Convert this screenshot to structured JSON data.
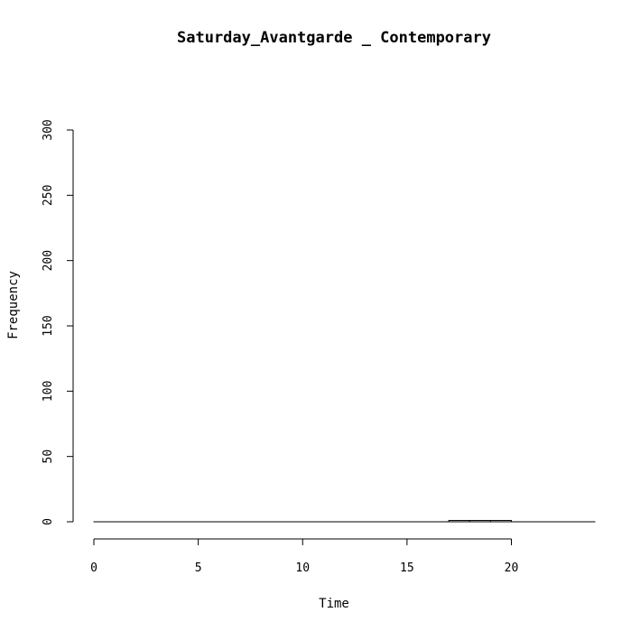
{
  "chart_data": {
    "type": "bar",
    "title": "Saturday_Avantgarde _ Contemporary",
    "xlabel": "Time",
    "ylabel": "Frequency",
    "xlim": [
      0,
      24
    ],
    "ylim": [
      0,
      300
    ],
    "x_ticks": [
      "0",
      "5",
      "10",
      "15",
      "20"
    ],
    "y_ticks": [
      "0",
      "50",
      "100",
      "150",
      "200",
      "250",
      "300"
    ],
    "bins": [
      {
        "start": 0,
        "end": 1,
        "value": 0
      },
      {
        "start": 1,
        "end": 2,
        "value": 0
      },
      {
        "start": 2,
        "end": 3,
        "value": 0
      },
      {
        "start": 3,
        "end": 4,
        "value": 0
      },
      {
        "start": 4,
        "end": 5,
        "value": 0
      },
      {
        "start": 5,
        "end": 6,
        "value": 0
      },
      {
        "start": 6,
        "end": 7,
        "value": 0
      },
      {
        "start": 7,
        "end": 8,
        "value": 0
      },
      {
        "start": 8,
        "end": 9,
        "value": 0
      },
      {
        "start": 9,
        "end": 10,
        "value": 0
      },
      {
        "start": 10,
        "end": 11,
        "value": 0
      },
      {
        "start": 11,
        "end": 12,
        "value": 0
      },
      {
        "start": 12,
        "end": 13,
        "value": 0
      },
      {
        "start": 13,
        "end": 14,
        "value": 0
      },
      {
        "start": 14,
        "end": 15,
        "value": 0
      },
      {
        "start": 15,
        "end": 16,
        "value": 0
      },
      {
        "start": 16,
        "end": 17,
        "value": 0
      },
      {
        "start": 17,
        "end": 18,
        "value": 1
      },
      {
        "start": 18,
        "end": 19,
        "value": 1
      },
      {
        "start": 19,
        "end": 20,
        "value": 1
      },
      {
        "start": 20,
        "end": 21,
        "value": 0
      },
      {
        "start": 21,
        "end": 22,
        "value": 0
      },
      {
        "start": 22,
        "end": 23,
        "value": 0
      },
      {
        "start": 23,
        "end": 24,
        "value": 0
      }
    ],
    "bar_color": "#ffffff",
    "bar_edge_color": "#000000",
    "grid": false
  }
}
